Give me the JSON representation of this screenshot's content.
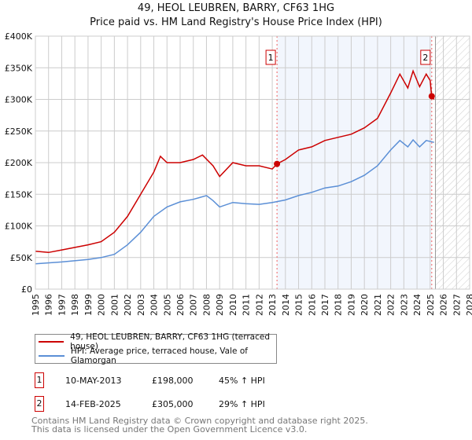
{
  "title": [
    "49, HEOL LEUBREN, BARRY, CF63 1HG",
    "Price paid vs. HM Land Registry's House Price Index (HPI)"
  ],
  "chart_data": {
    "type": "line",
    "xlim": [
      1995,
      2028
    ],
    "ylim": [
      0,
      400000
    ],
    "xticks": [
      "1995",
      "1996",
      "1997",
      "1998",
      "1999",
      "2000",
      "2001",
      "2002",
      "2003",
      "2004",
      "2005",
      "2006",
      "2007",
      "2008",
      "2009",
      "2010",
      "2011",
      "2012",
      "2013",
      "2014",
      "2015",
      "2016",
      "2017",
      "2018",
      "2019",
      "2020",
      "2021",
      "2022",
      "2023",
      "2024",
      "2025",
      "2026",
      "2027",
      "2028"
    ],
    "yticks": [
      {
        "v": 0,
        "l": "£0"
      },
      {
        "v": 50000,
        "l": "£50K"
      },
      {
        "v": 100000,
        "l": "£100K"
      },
      {
        "v": 150000,
        "l": "£150K"
      },
      {
        "v": 200000,
        "l": "£200K"
      },
      {
        "v": 250000,
        "l": "£250K"
      },
      {
        "v": 300000,
        "l": "£300K"
      },
      {
        "v": 350000,
        "l": "£350K"
      },
      {
        "v": 400000,
        "l": "£400K"
      }
    ],
    "grid": true,
    "series": [
      {
        "name": "49, HEOL LEUBREN, BARRY, CF63 1HG (terraced house)",
        "color": "#cc0000",
        "x": [
          1995,
          1996,
          1997,
          1998,
          1999,
          2000,
          2001,
          2002,
          2003,
          2004,
          2004.5,
          2005,
          2006,
          2007,
          2007.7,
          2008.5,
          2009,
          2010,
          2011,
          2012,
          2013,
          2013.36,
          2014,
          2015,
          2016,
          2017,
          2018,
          2019,
          2020,
          2021,
          2022,
          2022.7,
          2023.3,
          2023.7,
          2024.2,
          2024.7,
          2025.0,
          2025.12,
          2025.3
        ],
        "y": [
          60000,
          58000,
          62000,
          66000,
          70000,
          75000,
          90000,
          115000,
          150000,
          185000,
          210000,
          200000,
          200000,
          205000,
          212000,
          195000,
          178000,
          200000,
          195000,
          195000,
          190000,
          198000,
          205000,
          220000,
          225000,
          235000,
          240000,
          245000,
          255000,
          270000,
          310000,
          340000,
          318000,
          345000,
          320000,
          340000,
          330000,
          305000,
          300000
        ]
      },
      {
        "name": "HPI: Average price, terraced house, Vale of Glamorgan",
        "color": "#5b8fd6",
        "x": [
          1995,
          1997,
          1999,
          2000,
          2001,
          2002,
          2003,
          2004,
          2005,
          2006,
          2007,
          2008,
          2008.5,
          2009,
          2010,
          2011,
          2012,
          2013,
          2014,
          2015,
          2016,
          2017,
          2018,
          2019,
          2020,
          2021,
          2022,
          2022.7,
          2023.3,
          2023.7,
          2024.2,
          2024.7,
          2025.3
        ],
        "y": [
          40000,
          43000,
          47000,
          50000,
          55000,
          70000,
          90000,
          115000,
          130000,
          138000,
          142000,
          148000,
          140000,
          130000,
          137000,
          135000,
          134000,
          137000,
          141000,
          148000,
          153000,
          160000,
          163000,
          170000,
          180000,
          195000,
          220000,
          235000,
          225000,
          236000,
          225000,
          235000,
          232000
        ]
      }
    ],
    "sales": [
      {
        "label": "1",
        "x": 2013.36,
        "y": 198000
      },
      {
        "label": "2",
        "x": 2025.12,
        "y": 305000
      }
    ],
    "forecast_from": 2025.4
  },
  "legend": [
    "49, HEOL LEUBREN, BARRY, CF63 1HG (terraced house)",
    "HPI: Average price, terraced house, Vale of Glamorgan"
  ],
  "transactions": [
    {
      "num": "1",
      "date": "10-MAY-2013",
      "price": "£198,000",
      "hpi": "45% ↑ HPI"
    },
    {
      "num": "2",
      "date": "14-FEB-2025",
      "price": "£305,000",
      "hpi": "29% ↑ HPI"
    }
  ],
  "footer": [
    "Contains HM Land Registry data © Crown copyright and database right 2025.",
    "This data is licensed under the Open Government Licence v3.0."
  ]
}
